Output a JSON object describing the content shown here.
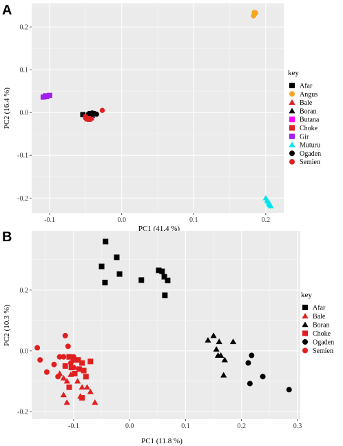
{
  "chart_data": [
    {
      "panel": "A",
      "type": "scatter",
      "xlabel": "PC1 (41.4 %)",
      "ylabel": "PC2 (16.4 %)",
      "xlim": [
        -0.125,
        0.225
      ],
      "ylim": [
        -0.235,
        0.255
      ],
      "xticks": [
        -0.1,
        0,
        0.1,
        0.2
      ],
      "xtick_labels": [
        "-0.1",
        "0.0",
        "0.1",
        "0.2"
      ],
      "yticks": [
        -0.2,
        -0.1,
        0,
        0.1,
        0.2
      ],
      "ytick_labels": [
        "-0.2",
        "-0.1",
        "0.0",
        "0.1",
        "0.2"
      ],
      "grid": true,
      "legend_title": "key",
      "legend_position": "right",
      "series": [
        {
          "name": "Afar",
          "color": "#000000",
          "shape": "square",
          "points": [
            [
              -0.054,
              -0.005
            ],
            [
              -0.05,
              -0.01
            ],
            [
              -0.046,
              -0.006
            ],
            [
              -0.048,
              -0.012
            ]
          ]
        },
        {
          "name": "Angus",
          "color": "#F5A623",
          "shape": "circle",
          "points": [
            [
              0.183,
              0.226
            ],
            [
              0.184,
              0.229
            ],
            [
              0.185,
              0.231
            ],
            [
              0.186,
              0.233
            ],
            [
              0.184,
              0.234
            ]
          ]
        },
        {
          "name": "Bale",
          "color": "#E02020",
          "shape": "triangle",
          "points": [
            [
              -0.047,
              -0.011
            ],
            [
              -0.045,
              -0.013
            ]
          ]
        },
        {
          "name": "Boran",
          "color": "#000000",
          "shape": "triangle",
          "points": [
            [
              -0.043,
              -0.004
            ],
            [
              -0.041,
              -0.007
            ]
          ]
        },
        {
          "name": "Butana",
          "color": "#FF00FF",
          "shape": "square",
          "points": [
            [
              -0.044,
              -0.009
            ],
            [
              -0.042,
              -0.012
            ]
          ]
        },
        {
          "name": "Choke",
          "color": "#E02020",
          "shape": "square",
          "points": [
            [
              -0.05,
              -0.01
            ],
            [
              -0.048,
              -0.015
            ],
            [
              -0.045,
              -0.016
            ],
            [
              -0.043,
              -0.013
            ]
          ]
        },
        {
          "name": "Gir",
          "color": "#A020F0",
          "shape": "square",
          "points": [
            [
              -0.109,
              0.036
            ],
            [
              -0.104,
              0.037
            ],
            [
              -0.1,
              0.04
            ],
            [
              -0.106,
              0.039
            ]
          ]
        },
        {
          "name": "Muturu",
          "color": "#00E5EE",
          "shape": "triangle",
          "points": [
            [
              0.2,
              -0.2
            ],
            [
              0.202,
              -0.205
            ],
            [
              0.203,
              -0.208
            ],
            [
              0.205,
              -0.212
            ],
            [
              0.206,
              -0.216
            ],
            [
              0.207,
              -0.219
            ],
            [
              0.204,
              -0.214
            ]
          ]
        },
        {
          "name": "Ogaden",
          "color": "#000000",
          "shape": "circle",
          "points": [
            [
              -0.045,
              -0.002
            ],
            [
              -0.041,
              -0.001
            ],
            [
              -0.038,
              -0.002
            ],
            [
              -0.035,
              -0.004
            ],
            [
              -0.04,
              -0.005
            ]
          ]
        },
        {
          "name": "Semien",
          "color": "#E02020",
          "shape": "circle",
          "points": [
            [
              -0.027,
              0.005
            ],
            [
              -0.046,
              -0.016
            ],
            [
              -0.05,
              -0.013
            ]
          ]
        }
      ]
    },
    {
      "panel": "B",
      "type": "scatter",
      "xlabel": "PC1 (11.8 %)",
      "ylabel": "PC2 (10.3 %)",
      "xlim": [
        -0.175,
        0.305
      ],
      "ylim": [
        -0.225,
        0.395
      ],
      "xticks": [
        -0.1,
        0,
        0.1,
        0.2,
        0.3
      ],
      "xtick_labels": [
        "-0.1",
        "0.0",
        "0.1",
        "0.2",
        "0.3"
      ],
      "yticks": [
        -0.2,
        0,
        0.2
      ],
      "ytick_labels": [
        "-0.2",
        "0.0",
        "0.2"
      ],
      "grid": true,
      "legend_title": "key",
      "legend_position": "right",
      "series": [
        {
          "name": "Afar",
          "color": "#000000",
          "shape": "square",
          "points": [
            [
              -0.043,
              0.36
            ],
            [
              -0.05,
              0.278
            ],
            [
              -0.023,
              0.308
            ],
            [
              -0.044,
              0.225
            ],
            [
              -0.018,
              0.253
            ],
            [
              0.021,
              0.233
            ],
            [
              0.052,
              0.265
            ],
            [
              0.058,
              0.262
            ],
            [
              0.062,
              0.244
            ],
            [
              0.068,
              0.232
            ],
            [
              0.063,
              0.183
            ]
          ]
        },
        {
          "name": "Bale",
          "color": "#E02020",
          "shape": "triangle",
          "points": [
            [
              -0.125,
              -0.075
            ],
            [
              -0.118,
              -0.09
            ],
            [
              -0.112,
              -0.1
            ],
            [
              -0.105,
              -0.078
            ],
            [
              -0.098,
              -0.055
            ],
            [
              -0.093,
              -0.1
            ],
            [
              -0.085,
              -0.12
            ],
            [
              -0.118,
              -0.145
            ],
            [
              -0.088,
              -0.15
            ],
            [
              -0.112,
              -0.17
            ],
            [
              -0.076,
              -0.12
            ],
            [
              -0.07,
              -0.135
            ],
            [
              -0.062,
              -0.17
            ]
          ]
        },
        {
          "name": "Boran",
          "color": "#000000",
          "shape": "triangle",
          "points": [
            [
              0.14,
              0.035
            ],
            [
              0.15,
              0.05
            ],
            [
              0.16,
              0.03
            ],
            [
              0.155,
              0.005
            ],
            [
              0.163,
              -0.015
            ],
            [
              0.17,
              -0.03
            ],
            [
              0.185,
              0.03
            ],
            [
              0.168,
              -0.08
            ],
            [
              0.158,
              -0.015
            ]
          ]
        },
        {
          "name": "Choke",
          "color": "#E02020",
          "shape": "square",
          "points": [
            [
              -0.108,
              -0.02
            ],
            [
              -0.1,
              -0.03
            ],
            [
              -0.092,
              -0.03
            ],
            [
              -0.085,
              -0.04
            ],
            [
              -0.082,
              -0.065
            ],
            [
              -0.07,
              -0.035
            ],
            [
              -0.09,
              -0.06
            ],
            [
              -0.104,
              -0.055
            ],
            [
              -0.115,
              -0.05
            ],
            [
              -0.108,
              -0.12
            ],
            [
              -0.078,
              -0.085
            ],
            [
              -0.085,
              -0.155
            ],
            [
              -0.098,
              -0.075
            ]
          ]
        },
        {
          "name": "Ogaden",
          "color": "#000000",
          "shape": "circle",
          "points": [
            [
              0.212,
              -0.04
            ],
            [
              0.218,
              -0.015
            ],
            [
              0.238,
              -0.085
            ],
            [
              0.215,
              -0.108
            ],
            [
              0.285,
              -0.128
            ]
          ]
        },
        {
          "name": "Semien",
          "color": "#E02020",
          "shape": "circle",
          "points": [
            [
              -0.165,
              0.01
            ],
            [
              -0.16,
              -0.03
            ],
            [
              -0.148,
              -0.07
            ],
            [
              -0.135,
              -0.045
            ],
            [
              -0.128,
              -0.085
            ],
            [
              -0.125,
              -0.02
            ],
            [
              -0.118,
              -0.02
            ],
            [
              -0.115,
              0.05
            ],
            [
              -0.11,
              0.015
            ],
            [
              -0.105,
              -0.04
            ],
            [
              -0.1,
              -0.02
            ]
          ]
        }
      ]
    }
  ]
}
